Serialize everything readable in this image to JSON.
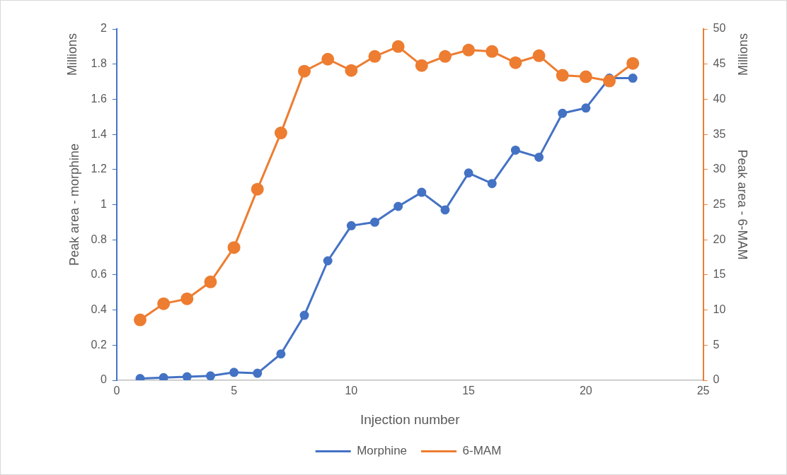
{
  "chart_data": {
    "type": "line",
    "xlabel": "Injection number",
    "ylabel": "Peak area - morphine",
    "y2label": "Peak area - 6-MAM",
    "annotations": [
      "Millions",
      "Millions"
    ],
    "x": [
      1,
      2,
      3,
      4,
      5,
      6,
      7,
      8,
      9,
      10,
      11,
      12,
      13,
      14,
      15,
      16,
      17,
      18,
      19,
      20,
      21,
      22
    ],
    "series": [
      {
        "name": "Morphine",
        "color": "#4472c4",
        "values": [
          0.01,
          0.015,
          0.02,
          0.025,
          0.045,
          0.04,
          0.15,
          0.37,
          0.68,
          0.88,
          0.9,
          0.99,
          1.07,
          0.97,
          1.18,
          1.12,
          1.31,
          1.27,
          1.52,
          1.55,
          1.72,
          1.72
        ]
      },
      {
        "name": "6-MAM",
        "color": "#ed7d31",
        "axis": "y2",
        "values": [
          8.6,
          10.9,
          11.6,
          14.0,
          18.9,
          27.2,
          35.2,
          44.0,
          45.7,
          44.1,
          46.1,
          47.5,
          44.8,
          46.1,
          47.0,
          46.8,
          45.2,
          46.2,
          43.4,
          43.2,
          42.6,
          45.1
        ]
      }
    ],
    "xlim": [
      0,
      25
    ],
    "xticks": [
      0,
      5,
      10,
      15,
      20,
      25
    ],
    "ylim": [
      0,
      2
    ],
    "yticks": [
      0,
      0.2,
      0.4,
      0.6,
      0.8,
      1,
      1.2,
      1.4,
      1.6,
      1.8,
      2
    ],
    "y2lim": [
      0,
      50
    ],
    "y2ticks": [
      0,
      5,
      10,
      15,
      20,
      25,
      30,
      35,
      40,
      45,
      50
    ],
    "grid": false,
    "legend": "bottom",
    "marker": "circle",
    "line_style": "solid"
  }
}
